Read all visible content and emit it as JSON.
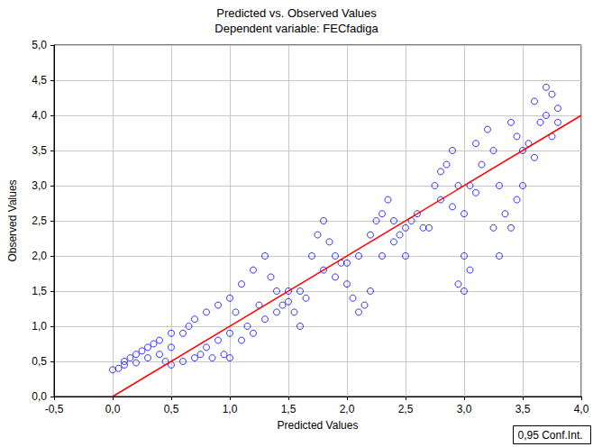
{
  "chart_data": {
    "type": "scatter",
    "title": "Predicted vs. Observed Values",
    "subtitle": "Dependent variable: FECfadiga",
    "x_label": "Predicted Values",
    "y_label": "Observed Values",
    "annotations": [
      "0,95 Conf.Int."
    ],
    "grid": true,
    "xlim": [
      -0.5,
      4.0
    ],
    "ylim": [
      0,
      5.0
    ],
    "xticks": [
      {
        "value": -0.5,
        "label": "-0,5"
      },
      {
        "value": 0,
        "label": "0,0"
      },
      {
        "value": 0.5,
        "label": "0,5"
      },
      {
        "value": 1.0,
        "label": "1,0"
      },
      {
        "value": 1.5,
        "label": "1,5"
      },
      {
        "value": 2.0,
        "label": "2,0"
      },
      {
        "value": 2.5,
        "label": "2,5"
      },
      {
        "value": 3.0,
        "label": "3,0"
      },
      {
        "value": 3.5,
        "label": "3,5"
      },
      {
        "value": 4.0,
        "label": "4,0"
      }
    ],
    "yticks": [
      {
        "value": 0,
        "label": "0,0"
      },
      {
        "value": 0.5,
        "label": "0,5"
      },
      {
        "value": 1.0,
        "label": "1,0"
      },
      {
        "value": 1.5,
        "label": "1,5"
      },
      {
        "value": 2.0,
        "label": "2,0"
      },
      {
        "value": 2.5,
        "label": "2,5"
      },
      {
        "value": 3.0,
        "label": "3,0"
      },
      {
        "value": 3.5,
        "label": "3,5"
      },
      {
        "value": 4.0,
        "label": "4,0"
      },
      {
        "value": 4.5,
        "label": "4,5"
      },
      {
        "value": 5.0,
        "label": "5,0"
      }
    ],
    "series": [
      {
        "type": "scatter",
        "color": "#0000ff",
        "marker": "circle",
        "x": [
          0.0,
          0.05,
          0.1,
          0.1,
          0.15,
          0.2,
          0.2,
          0.25,
          0.3,
          0.3,
          0.35,
          0.4,
          0.4,
          0.45,
          0.5,
          0.5,
          0.5,
          0.6,
          0.6,
          0.65,
          0.7,
          0.7,
          0.75,
          0.8,
          0.8,
          0.85,
          0.9,
          0.9,
          0.95,
          1.0,
          1.0,
          1.0,
          1.05,
          1.1,
          1.1,
          1.15,
          1.2,
          1.2,
          1.25,
          1.3,
          1.3,
          1.35,
          1.4,
          1.4,
          1.45,
          1.5,
          1.5,
          1.55,
          1.6,
          1.6,
          1.65,
          1.7,
          1.75,
          1.8,
          1.8,
          1.85,
          1.9,
          1.9,
          1.95,
          2.0,
          2.0,
          2.05,
          2.1,
          2.1,
          2.15,
          2.2,
          2.2,
          2.25,
          2.3,
          2.3,
          2.35,
          2.4,
          2.4,
          2.45,
          2.5,
          2.5,
          2.55,
          2.6,
          2.65,
          2.7,
          2.75,
          2.8,
          2.8,
          2.85,
          2.9,
          2.9,
          2.95,
          2.95,
          3.0,
          3.0,
          3.0,
          3.05,
          3.05,
          3.1,
          3.1,
          3.15,
          3.2,
          3.25,
          3.25,
          3.3,
          3.3,
          3.35,
          3.4,
          3.4,
          3.45,
          3.45,
          3.5,
          3.5,
          3.55,
          3.6,
          3.6,
          3.65,
          3.7,
          3.7,
          3.75,
          3.75,
          3.8,
          3.8
        ],
        "values": [
          0.38,
          0.4,
          0.45,
          0.5,
          0.55,
          0.6,
          0.48,
          0.65,
          0.7,
          0.55,
          0.75,
          0.6,
          0.8,
          0.5,
          0.45,
          0.7,
          0.9,
          0.5,
          0.9,
          1.0,
          0.55,
          1.1,
          0.6,
          0.7,
          1.2,
          0.55,
          0.8,
          1.3,
          0.6,
          0.9,
          1.4,
          0.55,
          1.2,
          0.8,
          1.6,
          1.0,
          0.9,
          1.8,
          1.3,
          1.1,
          2.0,
          1.7,
          1.2,
          1.5,
          1.3,
          1.5,
          1.35,
          1.2,
          1.0,
          1.5,
          1.4,
          2.0,
          2.3,
          2.5,
          1.8,
          2.2,
          1.7,
          2.0,
          1.9,
          1.9,
          1.6,
          1.4,
          1.2,
          2.0,
          1.3,
          1.5,
          2.3,
          2.5,
          2.6,
          2.0,
          2.8,
          2.5,
          2.2,
          2.3,
          2.4,
          2.0,
          2.5,
          2.6,
          2.4,
          2.4,
          3.0,
          3.2,
          2.8,
          3.3,
          3.5,
          2.7,
          3.0,
          1.6,
          2.0,
          1.5,
          2.6,
          1.8,
          3.0,
          2.9,
          3.6,
          3.3,
          3.8,
          3.5,
          2.4,
          2.0,
          3.0,
          2.6,
          3.9,
          2.4,
          2.8,
          3.7,
          3.5,
          3.0,
          3.6,
          4.2,
          3.4,
          3.9,
          4.4,
          4.0,
          4.3,
          3.7,
          4.1,
          3.9
        ]
      },
      {
        "type": "line",
        "color": "#ff0000",
        "line_style": "solid",
        "x": [
          0,
          4.0
        ],
        "values": [
          0,
          4.0
        ]
      }
    ]
  }
}
